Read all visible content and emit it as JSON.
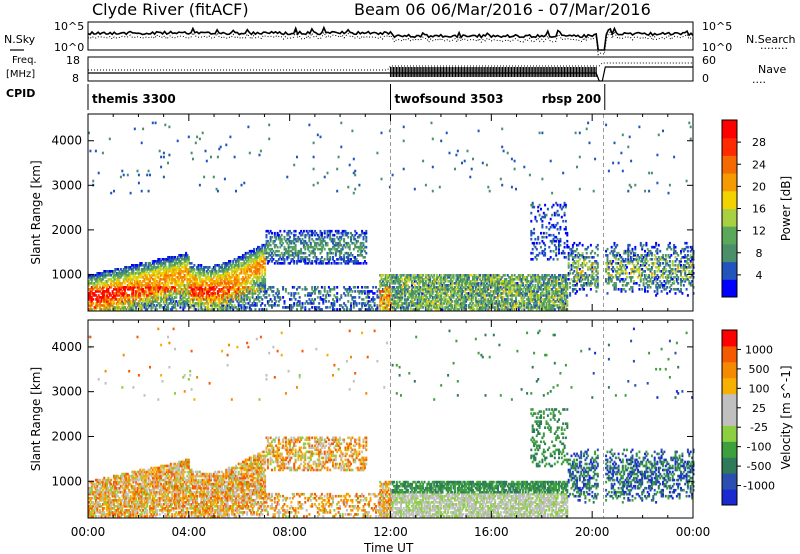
{
  "header": {
    "station": "Clyde River (fitACF)",
    "beam_date": "Beam 06  06/Mar/2016 - 07/Mar/2016"
  },
  "left_labels": {
    "nsky": "N.Sky",
    "freq_line1": "Freq.",
    "freq_line2": "[MHz]",
    "cpid": "CPID"
  },
  "right_labels": {
    "nsearch": "N.Search",
    "nave": "Nave",
    "nsearch_dots": "........",
    "nave_dots": "...."
  },
  "noise_panel": {
    "y_ticks_left": [
      "10^5",
      "10^0"
    ],
    "y_ticks_right": [
      "10^5",
      "10^0"
    ]
  },
  "freq_panel": {
    "y_ticks_left": [
      "18",
      "8"
    ],
    "y_ticks_right": [
      "60",
      "0"
    ]
  },
  "cpid_segments": [
    {
      "name": "themis 3300",
      "start_hour": 0
    },
    {
      "name": "twofsound 3503",
      "start_hour": 12
    },
    {
      "name": "rbsp 200",
      "start_hour": 20.5
    }
  ],
  "colors": {
    "power_scale": [
      "#0000ff",
      "#2255bb",
      "#4b8f6a",
      "#5aa85a",
      "#a8d040",
      "#f2d200",
      "#f59a00",
      "#f56a00",
      "#ff2a00",
      "#ff0000"
    ],
    "velocity_scale": [
      "#ff0000",
      "#f55a00",
      "#f58a00",
      "#f5b000",
      "#c0c0c0",
      "#c0c0c0",
      "#8ccf40",
      "#3ca03c",
      "#2f7a5a",
      "#2a4fb0",
      "#1a2ad0"
    ]
  },
  "chart_data": [
    {
      "type": "heatmap",
      "title": "",
      "xlabel": "Time UT",
      "ylabel": "Slant Range [km]",
      "x_ticks": [
        "00:00",
        "04:00",
        "08:00",
        "12:00",
        "16:00",
        "20:00",
        "00:00"
      ],
      "x_range_hours": [
        0,
        24
      ],
      "y_ticks": [
        1000,
        2000,
        3000,
        4000
      ],
      "ylim": [
        180,
        4600
      ],
      "colorbar_label": "Power [dB]",
      "colorbar_ticks": [
        4,
        8,
        12,
        16,
        20,
        24,
        28
      ],
      "colorbar_range": [
        0,
        30
      ]
    },
    {
      "type": "heatmap",
      "title": "",
      "xlabel": "Time UT",
      "ylabel": "Slant Range [km]",
      "x_ticks": [
        "00:00",
        "04:00",
        "08:00",
        "12:00",
        "16:00",
        "20:00",
        "00:00"
      ],
      "x_range_hours": [
        0,
        24
      ],
      "y_ticks": [
        1000,
        2000,
        3000,
        4000
      ],
      "ylim": [
        180,
        4600
      ],
      "colorbar_label": "Velocity [m s^-1]",
      "colorbar_ticks": [
        1000,
        500,
        100,
        25,
        -25,
        -100,
        -500,
        -1000
      ],
      "colorbar_range": [
        -1200,
        1200
      ]
    }
  ]
}
